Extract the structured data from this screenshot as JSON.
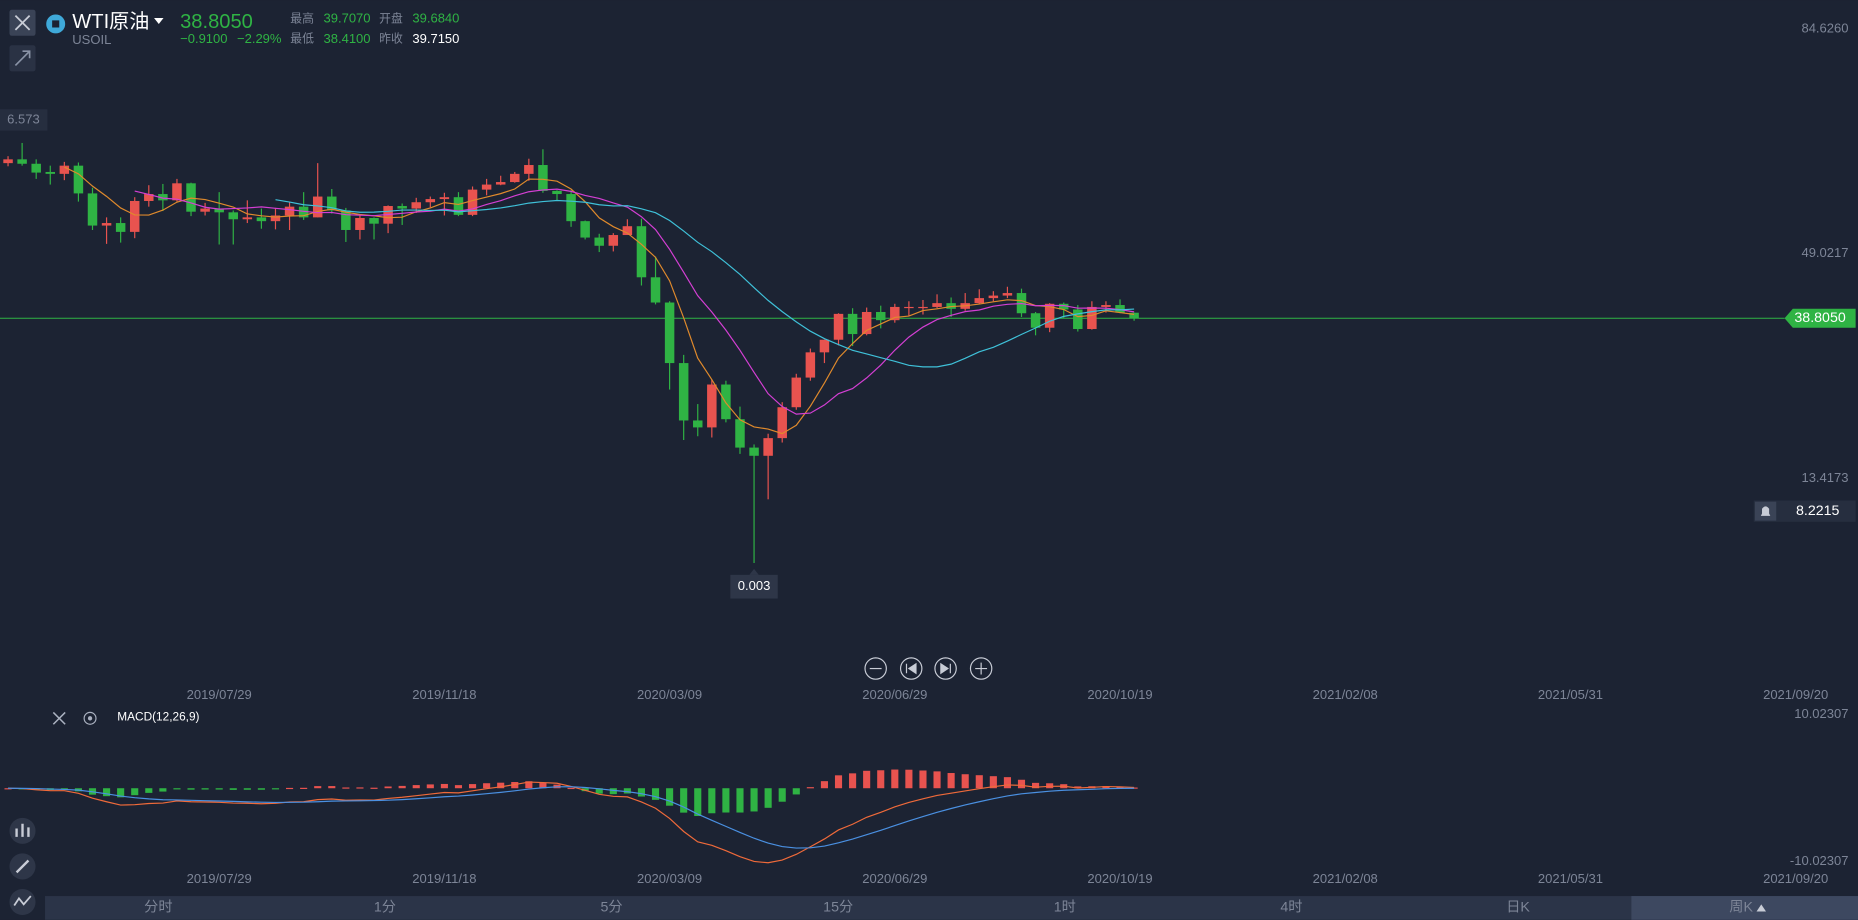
{
  "header": {
    "symbol": "WTI原油",
    "code": "USOIL",
    "price": "38.8050",
    "change": "−0.9100",
    "change_pct": "−2.29%",
    "stats": [
      {
        "label": "最高",
        "value": "39.7070"
      },
      {
        "label": "开盘",
        "value": "39.6840"
      },
      {
        "label": "最低",
        "value": "38.4100"
      },
      {
        "label": "昨收",
        "value": "39.7150"
      }
    ]
  },
  "tabs": [
    "分时",
    "1分",
    "5分",
    "15分",
    "1时",
    "4时",
    "日K",
    "周K"
  ],
  "selected_tab": 7,
  "chart_data": {
    "type": "candlestick",
    "up_color": "#e8534f",
    "down_color": "#2fb344",
    "cursor_label": "6.573",
    "xlim": [
      "2019/04/11",
      "2021/10/21"
    ],
    "xticks": [
      "2019/07/29",
      "2019/11/18",
      "2020/03/09",
      "2020/06/29",
      "2020/10/19",
      "2021/02/08",
      "2021/05/31",
      "2021/09/20"
    ],
    "ylim": [
      -18.8,
      89.226
    ],
    "yticks": [
      {
        "value": 84.626,
        "label": "84.6260"
      },
      49.0217,
      13.4173
    ],
    "price_line": {
      "value": 38.805,
      "label": "38.8050",
      "color": "#2fb344"
    },
    "alert": 8.2215,
    "x": [
      "2019/04/15",
      "2019/04/22",
      "2019/04/29",
      "2019/05/06",
      "2019/05/13",
      "2019/05/20",
      "2019/05/27",
      "2019/06/03",
      "2019/06/10",
      "2019/06/17",
      "2019/06/24",
      "2019/07/01",
      "2019/07/08",
      "2019/07/15",
      "2019/07/22",
      "2019/07/29",
      "2019/08/05",
      "2019/08/12",
      "2019/08/19",
      "2019/08/26",
      "2019/09/02",
      "2019/09/09",
      "2019/09/16",
      "2019/09/23",
      "2019/09/30",
      "2019/10/07",
      "2019/10/14",
      "2019/10/21",
      "2019/10/28",
      "2019/11/04",
      "2019/11/11",
      "2019/11/18",
      "2019/11/25",
      "2019/12/02",
      "2019/12/09",
      "2019/12/16",
      "2019/12/23",
      "2019/12/30",
      "2020/01/06",
      "2020/01/13",
      "2020/01/20",
      "2020/01/27",
      "2020/02/03",
      "2020/02/10",
      "2020/02/17",
      "2020/02/24",
      "2020/03/02",
      "2020/03/09",
      "2020/03/16",
      "2020/03/23",
      "2020/03/30",
      "2020/04/06",
      "2020/04/13",
      "2020/04/20",
      "2020/04/27",
      "2020/05/04",
      "2020/05/11",
      "2020/05/18",
      "2020/05/25",
      "2020/06/01",
      "2020/06/08",
      "2020/06/15",
      "2020/06/22",
      "2020/06/29",
      "2020/07/06",
      "2020/07/13",
      "2020/07/20",
      "2020/07/27",
      "2020/08/03",
      "2020/08/10",
      "2020/08/17",
      "2020/08/24",
      "2020/08/31",
      "2020/09/07",
      "2020/09/14",
      "2020/09/21",
      "2020/09/28",
      "2020/10/05",
      "2020/10/12",
      "2020/10/19",
      "2020/10/26"
    ],
    "open": [
      63.4,
      64.0,
      63.3,
      62.0,
      61.7,
      63.0,
      58.6,
      53.5,
      53.9,
      52.5,
      57.4,
      58.5,
      57.5,
      60.2,
      55.7,
      56.2,
      55.6,
      54.5,
      54.8,
      54.2,
      55.1,
      56.5,
      54.8,
      58.1,
      55.9,
      52.8,
      54.7,
      53.8,
      56.6,
      56.2,
      57.2,
      57.7,
      58.0,
      55.2,
      59.2,
      60.0,
      60.4,
      61.7,
      63.1,
      59.0,
      58.5,
      54.2,
      51.6,
      50.3,
      52.0,
      53.4,
      45.3,
      41.3,
      31.7,
      22.6,
      21.5,
      28.3,
      22.8,
      18.3,
      17.0,
      19.8,
      24.7,
      29.4,
      33.4,
      35.4,
      39.5,
      36.3,
      39.8,
      38.5,
      40.6,
      40.6,
      40.6,
      41.2,
      40.3,
      41.2,
      42.0,
      42.4,
      42.8,
      39.6,
      37.3,
      41.1,
      40.2,
      37.1,
      40.6,
      40.9,
      39.684
    ],
    "high": [
      64.5,
      66.6,
      64.0,
      63.0,
      63.6,
      63.5,
      59.5,
      54.8,
      54.8,
      58.0,
      59.9,
      60.1,
      60.9,
      60.3,
      57.1,
      58.8,
      55.9,
      57.5,
      56.2,
      56.3,
      57.3,
      58.8,
      63.4,
      59.3,
      56.3,
      55.1,
      54.8,
      56.7,
      57.0,
      57.9,
      58.1,
      58.7,
      58.8,
      59.7,
      60.9,
      61.4,
      62.0,
      64.1,
      65.6,
      59.1,
      59.1,
      54.3,
      52.2,
      52.3,
      54.5,
      54.6,
      48.6,
      41.5,
      33.0,
      25.2,
      29.1,
      28.9,
      24.8,
      18.8,
      20.5,
      25.5,
      30.0,
      34.0,
      35.4,
      39.6,
      40.4,
      40.5,
      40.8,
      41.1,
      41.5,
      41.7,
      42.6,
      42.1,
      42.8,
      43.4,
      43.1,
      43.8,
      43.5,
      39.8,
      41.2,
      41.3,
      40.9,
      41.5,
      41.5,
      41.8,
      39.707
    ],
    "low": [
      62.9,
      63.0,
      60.9,
      60.0,
      60.7,
      57.3,
      52.8,
      50.6,
      50.8,
      51.5,
      56.5,
      55.8,
      57.3,
      55.0,
      55.1,
      50.5,
      50.5,
      53.9,
      53.0,
      52.9,
      52.8,
      54.4,
      54.8,
      55.4,
      50.9,
      51.3,
      51.3,
      52.3,
      53.6,
      55.5,
      56.4,
      55.1,
      55.0,
      55.0,
      58.3,
      59.9,
      60.3,
      60.6,
      58.7,
      57.5,
      53.3,
      51.3,
      49.3,
      49.4,
      52.3,
      44.0,
      41.0,
      27.5,
      19.5,
      20.1,
      19.9,
      22.3,
      17.3,
      0.003,
      10.1,
      19.1,
      24.3,
      28.9,
      31.7,
      34.5,
      34.4,
      36.1,
      37.2,
      38.1,
      39.2,
      39.4,
      40.4,
      39.0,
      40.0,
      41.0,
      41.5,
      42.0,
      39.0,
      36.1,
      36.6,
      38.8,
      36.7,
      37.0,
      39.7,
      39.6,
      38.41
    ],
    "close": [
      64.0,
      63.3,
      61.9,
      61.7,
      63.0,
      58.6,
      53.5,
      53.9,
      52.5,
      57.4,
      58.5,
      57.5,
      60.2,
      55.7,
      56.2,
      55.6,
      54.5,
      54.8,
      54.2,
      55.1,
      56.5,
      54.8,
      58.1,
      55.9,
      52.8,
      54.7,
      53.8,
      56.6,
      56.2,
      57.2,
      57.7,
      58.0,
      55.2,
      59.2,
      60.0,
      60.4,
      61.7,
      63.1,
      59.0,
      58.5,
      54.2,
      51.6,
      50.3,
      52.0,
      53.4,
      45.3,
      41.3,
      31.7,
      22.6,
      21.5,
      28.3,
      22.8,
      18.3,
      17.0,
      19.8,
      24.7,
      29.4,
      33.4,
      35.4,
      39.5,
      36.3,
      39.8,
      38.5,
      40.6,
      40.6,
      40.6,
      41.2,
      40.3,
      41.2,
      42.0,
      42.4,
      42.8,
      39.6,
      37.3,
      41.1,
      40.2,
      37.1,
      40.6,
      40.9,
      39.7,
      38.805
    ],
    "moving_averages": [
      {
        "period": 5,
        "color": "#e08a2c"
      },
      {
        "period": 10,
        "color": "#d43fd4"
      },
      {
        "period": 20,
        "color": "#3fc1d9"
      }
    ],
    "macd": {
      "label": "MACD(12,26,9)",
      "fast": 12,
      "slow": 26,
      "signal": 9,
      "dif_color": "#ef6a3a",
      "dea_color": "#4a90e2",
      "ylim": [
        -10.02307,
        10.02307
      ],
      "yticks": [
        10.02307,
        -10.02307
      ]
    }
  }
}
